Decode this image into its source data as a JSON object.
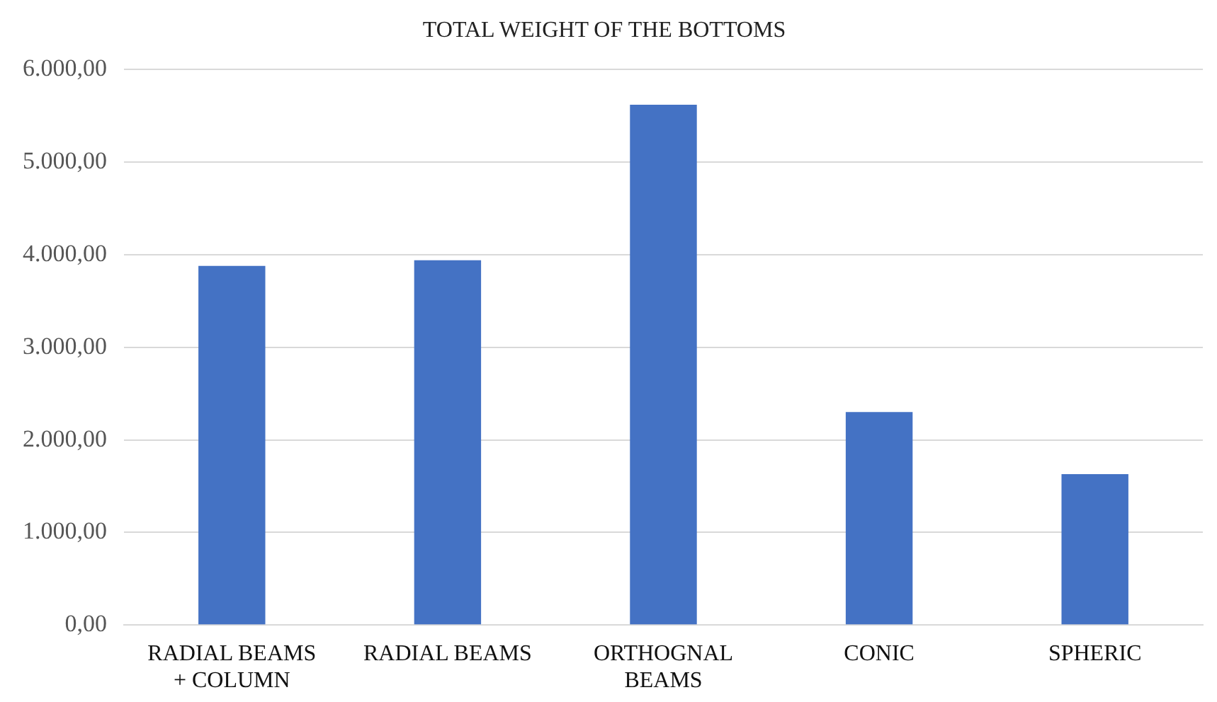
{
  "chart_data": {
    "type": "bar",
    "title": "TOTAL WEIGHT OF THE BOTTOMS",
    "categories": [
      "RADIAL BEAMS\n+ COLUMN",
      "RADIAL BEAMS",
      "ORTHOGNAL\nBEAMS",
      "CONIC",
      "SPHERIC"
    ],
    "values": [
      3880,
      3940,
      5620,
      2300,
      1630
    ],
    "color": "#4472c4",
    "ylim": [
      0,
      6000
    ],
    "yticks": [
      {
        "value": 0,
        "label": "0,00"
      },
      {
        "value": 1000,
        "label": "1.000,00"
      },
      {
        "value": 2000,
        "label": "2.000,00"
      },
      {
        "value": 3000,
        "label": "3.000,00"
      },
      {
        "value": 4000,
        "label": "4.000,00"
      },
      {
        "value": 5000,
        "label": "5.000,00"
      },
      {
        "value": 6000,
        "label": "6.000,00"
      }
    ],
    "grid": "y"
  }
}
